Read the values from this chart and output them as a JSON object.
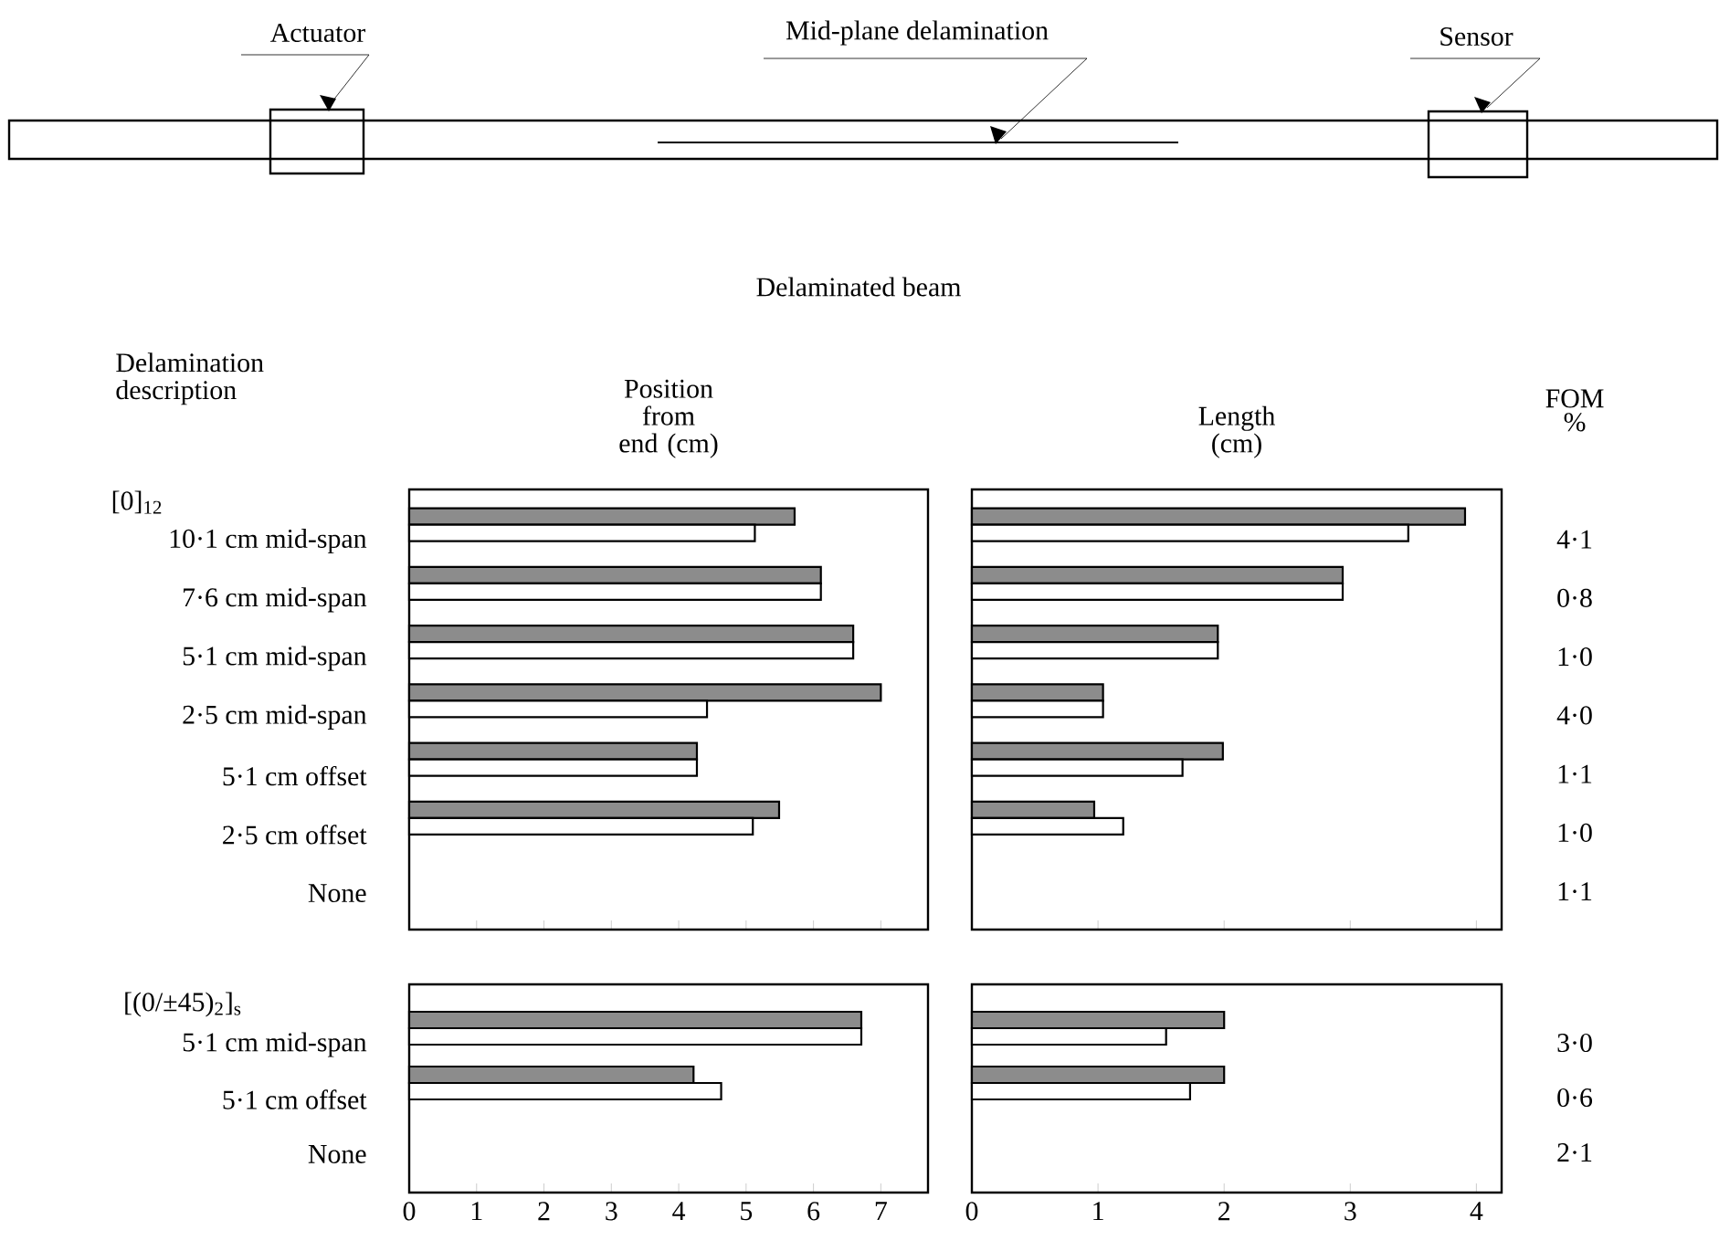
{
  "chart_data": [
    {
      "type": "bar",
      "orientation": "horizontal",
      "title": "Position from end (cm)",
      "ylabel": "Delamination description",
      "subtitle": "[0]$_{12}$",
      "categories": [
        "10·1 cm mid-span",
        "7·6 cm mid-span",
        "5·1 cm mid-span",
        "2·5 cm mid-span",
        "5·1 cm offset",
        "2·5 cm offset",
        "None"
      ],
      "series": [
        {
          "color": "#8c8c8c",
          "values": [
            5.72,
            6.11,
            6.59,
            7.0,
            4.27,
            5.49,
            null
          ]
        },
        {
          "color": "#ffffff",
          "values": [
            5.13,
            6.11,
            6.59,
            4.42,
            4.27,
            5.1,
            null
          ]
        }
      ],
      "xlim": [
        0,
        7.7
      ],
      "xticks": [
        0,
        1,
        2,
        3,
        4,
        5,
        6,
        7
      ],
      "tick_labels": "y",
      "annotations": [
        "Actuator",
        "Mid-plane delamination",
        "Sensor",
        "Delaminated beam"
      ]
    },
    {
      "type": "bar",
      "orientation": "horizontal",
      "title": "Length (cm)",
      "y2label": "FOM %",
      "categories": [
        null,
        null,
        null,
        null,
        null,
        null,
        null
      ],
      "series": [
        {
          "color": "#8c8c8c",
          "values": [
            3.91,
            2.94,
            1.95,
            1.04,
            1.99,
            0.97,
            null
          ]
        },
        {
          "color": "#ffffff",
          "values": [
            3.46,
            2.94,
            1.95,
            1.04,
            1.67,
            1.2,
            null
          ]
        }
      ],
      "xlim": [
        0,
        4.2
      ],
      "xticks": [
        0,
        1,
        2,
        3,
        4
      ],
      "tick_labels": false,
      "annotations": [
        "4·1",
        "0·8",
        "1·0",
        "4·0",
        "1·1",
        "1·0",
        "1·1"
      ]
    },
    {
      "type": "bar",
      "orientation": "horizontal",
      "subtitle": "[(0/±45)$_{2}$]$_{s}$",
      "categories": [
        "5·1 cm mid-span",
        "5·1 cm offset",
        "None"
      ],
      "series": [
        {
          "color": "#8c8c8c",
          "values": [
            6.71,
            4.22,
            null
          ]
        },
        {
          "color": "#ffffff",
          "values": [
            6.71,
            4.63,
            null
          ]
        }
      ],
      "xlim": [
        0,
        7.7
      ],
      "xticks": [
        0,
        1,
        2,
        3,
        4,
        5,
        6,
        7
      ]
    },
    {
      "type": "bar",
      "orientation": "horizontal",
      "categories": [
        null,
        null,
        null
      ],
      "series": [
        {
          "color": "#8c8c8c",
          "values": [
            2.0,
            2.0,
            null
          ]
        },
        {
          "color": "#ffffff",
          "values": [
            1.54,
            1.73,
            null
          ]
        }
      ],
      "xlim": [
        0,
        4.2
      ],
      "xticks": [
        0,
        1,
        2,
        3,
        4
      ],
      "tick_labels": "x",
      "annotations": [
        "3·0",
        "0·6",
        "2·1"
      ]
    }
  ]
}
